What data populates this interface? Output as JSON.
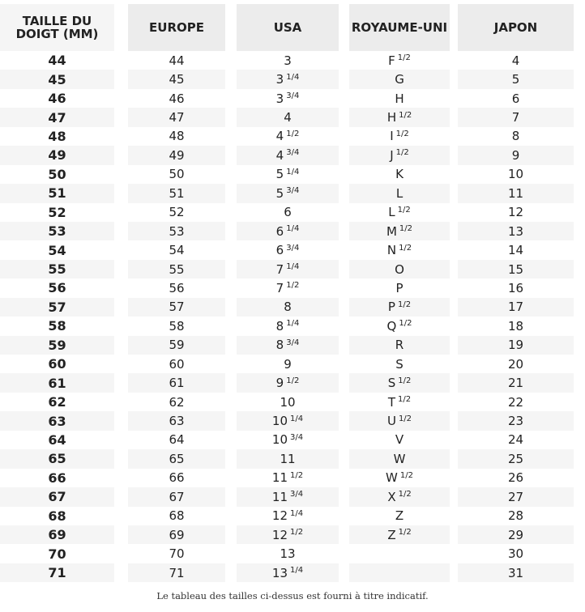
{
  "headers": [
    "TAILLE DU DOIGT (MM)",
    "EUROPE",
    "USA",
    "ROYAUME-UNI",
    "JAPON"
  ],
  "rows": [
    [
      [
        "44"
      ],
      [
        "44"
      ],
      [
        "3"
      ],
      [
        "F",
        "1/2"
      ],
      [
        "4"
      ]
    ],
    [
      [
        "45"
      ],
      [
        "45"
      ],
      [
        "3",
        "1/4"
      ],
      [
        "G"
      ],
      [
        "5"
      ]
    ],
    [
      [
        "46"
      ],
      [
        "46"
      ],
      [
        "3",
        "3/4"
      ],
      [
        "H"
      ],
      [
        "6"
      ]
    ],
    [
      [
        "47"
      ],
      [
        "47"
      ],
      [
        "4"
      ],
      [
        "H",
        "1/2"
      ],
      [
        "7"
      ]
    ],
    [
      [
        "48"
      ],
      [
        "48"
      ],
      [
        "4",
        "1/2"
      ],
      [
        "I",
        "1/2"
      ],
      [
        "8"
      ]
    ],
    [
      [
        "49"
      ],
      [
        "49"
      ],
      [
        "4",
        "3/4"
      ],
      [
        "J",
        "1/2"
      ],
      [
        "9"
      ]
    ],
    [
      [
        "50"
      ],
      [
        "50"
      ],
      [
        "5",
        "1/4"
      ],
      [
        "K"
      ],
      [
        "10"
      ]
    ],
    [
      [
        "51"
      ],
      [
        "51"
      ],
      [
        "5",
        "3/4"
      ],
      [
        "L"
      ],
      [
        "11"
      ]
    ],
    [
      [
        "52"
      ],
      [
        "52"
      ],
      [
        "6"
      ],
      [
        "L",
        "1/2"
      ],
      [
        "12"
      ]
    ],
    [
      [
        "53"
      ],
      [
        "53"
      ],
      [
        "6",
        "1/4"
      ],
      [
        "M",
        "1/2"
      ],
      [
        "13"
      ]
    ],
    [
      [
        "54"
      ],
      [
        "54"
      ],
      [
        "6",
        "3/4"
      ],
      [
        "N",
        "1/2"
      ],
      [
        "14"
      ]
    ],
    [
      [
        "55"
      ],
      [
        "55"
      ],
      [
        "7",
        "1/4"
      ],
      [
        "O"
      ],
      [
        "15"
      ]
    ],
    [
      [
        "56"
      ],
      [
        "56"
      ],
      [
        "7",
        "1/2"
      ],
      [
        "P"
      ],
      [
        "16"
      ]
    ],
    [
      [
        "57"
      ],
      [
        "57"
      ],
      [
        "8"
      ],
      [
        "P",
        "1/2"
      ],
      [
        "17"
      ]
    ],
    [
      [
        "58"
      ],
      [
        "58"
      ],
      [
        "8",
        "1/4"
      ],
      [
        "Q",
        "1/2"
      ],
      [
        "18"
      ]
    ],
    [
      [
        "59"
      ],
      [
        "59"
      ],
      [
        "8",
        "3/4"
      ],
      [
        "R"
      ],
      [
        "19"
      ]
    ],
    [
      [
        "60"
      ],
      [
        "60"
      ],
      [
        "9"
      ],
      [
        "S"
      ],
      [
        "20"
      ]
    ],
    [
      [
        "61"
      ],
      [
        "61"
      ],
      [
        "9",
        "1/2"
      ],
      [
        "S",
        "1/2"
      ],
      [
        "21"
      ]
    ],
    [
      [
        "62"
      ],
      [
        "62"
      ],
      [
        "10"
      ],
      [
        "T",
        "1/2"
      ],
      [
        "22"
      ]
    ],
    [
      [
        "63"
      ],
      [
        "63"
      ],
      [
        "10",
        "1/4"
      ],
      [
        "U",
        "1/2"
      ],
      [
        "23"
      ]
    ],
    [
      [
        "64"
      ],
      [
        "64"
      ],
      [
        "10",
        "3/4"
      ],
      [
        "V"
      ],
      [
        "24"
      ]
    ],
    [
      [
        "65"
      ],
      [
        "65"
      ],
      [
        "11"
      ],
      [
        "W"
      ],
      [
        "25"
      ]
    ],
    [
      [
        "66"
      ],
      [
        "66"
      ],
      [
        "11",
        "1/2"
      ],
      [
        "W",
        "1/2"
      ],
      [
        "26"
      ]
    ],
    [
      [
        "67"
      ],
      [
        "67"
      ],
      [
        "11",
        "3/4"
      ],
      [
        "X",
        "1/2"
      ],
      [
        "27"
      ]
    ],
    [
      [
        "68"
      ],
      [
        "68"
      ],
      [
        "12",
        "1/4"
      ],
      [
        "Z"
      ],
      [
        "28"
      ]
    ],
    [
      [
        "69"
      ],
      [
        "69"
      ],
      [
        "12",
        "1/2"
      ],
      [
        "Z",
        "1/2"
      ],
      [
        "29"
      ]
    ],
    [
      [
        "70"
      ],
      [
        "70"
      ],
      [
        "13"
      ],
      [
        ""
      ],
      [
        "30"
      ]
    ],
    [
      [
        "71"
      ],
      [
        "71"
      ],
      [
        "13",
        "1/4"
      ],
      [
        ""
      ],
      [
        "31"
      ]
    ]
  ],
  "note": "Le tableau des tailles ci-dessus est fourni à titre indicatif."
}
